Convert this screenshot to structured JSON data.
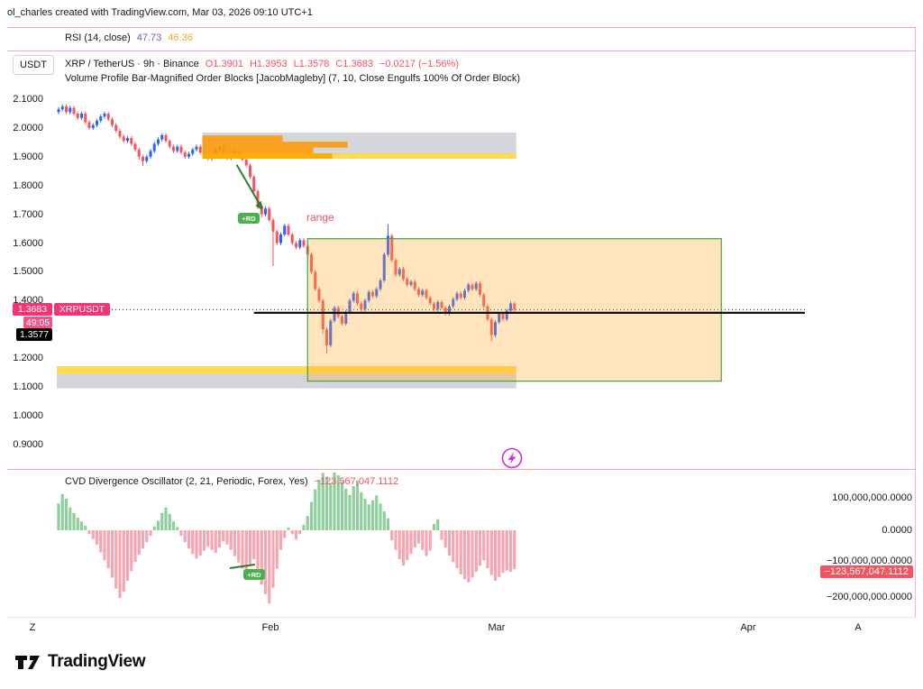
{
  "attribution": "ol_charles created with TradingView.com, Mar 03, 2026 09:10 UTC+1",
  "rsi_pane": {
    "label": "RSI (14, close)",
    "value_purple": "47.73",
    "value_orange": "46.36"
  },
  "symbol_row": {
    "title": "XRP / TetherUS · 9h · Binance",
    "ohlc": [
      "O1.3901",
      "H1.3953",
      "L1.3578",
      "C1.3683"
    ],
    "change": "−0.0217 (−1.56%)"
  },
  "indicator_row": {
    "title": "Volume Profile Bar-Magnified Order Blocks [JacobMagleby] (7, 10, Close Engulfs 100% Of Order Block)"
  },
  "currency_button": "USDT",
  "price_axis": {
    "ticks": [
      "2.1000",
      "2.0000",
      "1.9000",
      "1.8000",
      "1.7000",
      "1.6000",
      "1.5000",
      "1.4000",
      "1.2000",
      "1.1000",
      "1.0000",
      "0.9000"
    ]
  },
  "price_labels": {
    "current": "1.3683",
    "symbol_tag": "XRPUSDT",
    "countdown": "49:05",
    "hline": "1.3577"
  },
  "annotations": {
    "range_label": "range",
    "rd_badge": "+RD"
  },
  "time_axis": {
    "labels": [
      "Z",
      "Feb",
      "Mar",
      "Apr",
      "A"
    ]
  },
  "oscillator": {
    "label": "CVD Divergence Oscillator (2, 21, Periodic, Forex, Yes)",
    "value": "−123,567,047.1112",
    "axis": [
      "100,000,000.0000",
      "0.0000",
      "−100,000,000.0000",
      "−200,000,000.0000"
    ],
    "badge": "−123,567,047.1112"
  },
  "logo": {
    "text": "TradingView"
  },
  "colors": {
    "up": "#2962ff",
    "down": "#f7525f",
    "red_text": "#f7525f",
    "pink_label": "#f23674",
    "purple": "#7e57c2",
    "orange_value": "#f5a623",
    "osc_green": "#8fcf9b",
    "osc_red": "#f6a6b0",
    "separator": "#fa6e78",
    "green": "#2e7d32",
    "range_border": "#43a047"
  },
  "chart_data": {
    "type": "candlestick",
    "symbol": "XRP/USDT",
    "interval": "9h",
    "exchange": "Binance",
    "price_axis_range": [
      0.9,
      2.155
    ],
    "last": {
      "open": 1.3901,
      "high": 1.3953,
      "low": 1.3578,
      "close": 1.3683,
      "change": -0.0217,
      "change_pct": -1.56
    },
    "candles": [
      [
        2.055,
        2.072,
        2.048,
        2.065
      ],
      [
        2.065,
        2.082,
        2.058,
        2.075
      ],
      [
        2.075,
        2.082,
        2.048,
        2.055
      ],
      [
        2.055,
        2.077,
        2.048,
        2.07
      ],
      [
        2.07,
        2.077,
        2.043,
        2.05
      ],
      [
        2.05,
        2.057,
        2.028,
        2.035
      ],
      [
        2.035,
        2.057,
        2.028,
        2.05
      ],
      [
        2.05,
        2.057,
        2.013,
        2.02
      ],
      [
        2.02,
        2.027,
        1.993,
        2.0
      ],
      [
        2.0,
        2.017,
        1.993,
        2.01
      ],
      [
        2.01,
        2.032,
        2.003,
        2.025
      ],
      [
        2.025,
        2.047,
        2.018,
        2.04
      ],
      [
        2.04,
        2.057,
        2.033,
        2.05
      ],
      [
        2.05,
        2.057,
        2.023,
        2.03
      ],
      [
        2.03,
        2.037,
        2.003,
        2.01
      ],
      [
        2.01,
        2.017,
        1.983,
        1.99
      ],
      [
        1.99,
        1.997,
        1.963,
        1.97
      ],
      [
        1.97,
        1.977,
        1.948,
        1.955
      ],
      [
        1.955,
        1.972,
        1.948,
        1.965
      ],
      [
        1.965,
        1.972,
        1.938,
        1.945
      ],
      [
        1.945,
        1.952,
        1.918,
        1.925
      ],
      [
        1.925,
        1.932,
        1.89,
        1.9
      ],
      [
        1.9,
        1.907,
        1.868,
        1.885
      ],
      [
        1.885,
        1.907,
        1.878,
        1.9
      ],
      [
        1.9,
        1.927,
        1.893,
        1.92
      ],
      [
        1.92,
        1.952,
        1.913,
        1.945
      ],
      [
        1.945,
        1.967,
        1.938,
        1.96
      ],
      [
        1.96,
        1.982,
        1.953,
        1.975
      ],
      [
        1.975,
        1.982,
        1.948,
        1.955
      ],
      [
        1.955,
        1.962,
        1.928,
        1.935
      ],
      [
        1.935,
        1.942,
        1.913,
        1.92
      ],
      [
        1.92,
        1.942,
        1.913,
        1.935
      ],
      [
        1.935,
        1.942,
        1.908,
        1.915
      ],
      [
        1.915,
        1.922,
        1.893,
        1.9
      ],
      [
        1.9,
        1.917,
        1.893,
        1.91
      ],
      [
        1.91,
        1.932,
        1.903,
        1.925
      ],
      [
        1.925,
        1.942,
        1.918,
        1.935
      ],
      [
        1.935,
        1.942,
        1.908,
        1.915
      ],
      [
        1.915,
        1.922,
        1.893,
        1.9
      ],
      [
        1.9,
        1.907,
        1.886,
        1.893
      ],
      [
        1.893,
        1.912,
        1.886,
        1.905
      ],
      [
        1.905,
        1.932,
        1.898,
        1.925
      ],
      [
        1.925,
        1.942,
        1.918,
        1.935
      ],
      [
        1.935,
        1.942,
        1.908,
        1.915
      ],
      [
        1.915,
        1.922,
        1.888,
        1.895
      ],
      [
        1.895,
        1.912,
        1.888,
        1.905
      ],
      [
        1.905,
        1.927,
        1.898,
        1.92
      ],
      [
        1.92,
        1.927,
        1.893,
        1.9
      ],
      [
        1.9,
        1.907,
        1.883,
        1.89
      ],
      [
        1.89,
        1.897,
        1.863,
        1.87
      ],
      [
        1.87,
        1.877,
        1.823,
        1.83
      ],
      [
        1.83,
        1.837,
        1.773,
        1.78
      ],
      [
        1.78,
        1.787,
        1.718,
        1.73
      ],
      [
        1.73,
        1.737,
        1.688,
        1.7
      ],
      [
        1.7,
        1.727,
        1.693,
        1.72
      ],
      [
        1.72,
        1.727,
        1.673,
        1.68
      ],
      [
        1.68,
        1.687,
        1.52,
        1.64
      ],
      [
        1.64,
        1.647,
        1.593,
        1.6
      ],
      [
        1.6,
        1.637,
        1.593,
        1.63
      ],
      [
        1.63,
        1.667,
        1.623,
        1.66
      ],
      [
        1.66,
        1.667,
        1.623,
        1.63
      ],
      [
        1.63,
        1.637,
        1.593,
        1.6
      ],
      [
        1.6,
        1.607,
        1.578,
        1.585
      ],
      [
        1.585,
        1.617,
        1.578,
        1.61
      ],
      [
        1.61,
        1.617,
        1.583,
        1.59
      ],
      [
        1.59,
        1.597,
        1.553,
        1.56
      ],
      [
        1.56,
        1.567,
        1.493,
        1.5
      ],
      [
        1.5,
        1.507,
        1.433,
        1.44
      ],
      [
        1.44,
        1.447,
        1.393,
        1.4
      ],
      [
        1.4,
        1.407,
        1.285,
        1.3
      ],
      [
        1.3,
        1.307,
        1.215,
        1.245
      ],
      [
        1.245,
        1.337,
        1.238,
        1.33
      ],
      [
        1.33,
        1.382,
        1.323,
        1.375
      ],
      [
        1.375,
        1.382,
        1.338,
        1.345
      ],
      [
        1.345,
        1.352,
        1.313,
        1.32
      ],
      [
        1.32,
        1.367,
        1.313,
        1.36
      ],
      [
        1.36,
        1.407,
        1.353,
        1.4
      ],
      [
        1.4,
        1.432,
        1.393,
        1.425
      ],
      [
        1.425,
        1.432,
        1.383,
        1.39
      ],
      [
        1.39,
        1.397,
        1.363,
        1.37
      ],
      [
        1.37,
        1.407,
        1.363,
        1.4
      ],
      [
        1.4,
        1.437,
        1.393,
        1.43
      ],
      [
        1.43,
        1.437,
        1.408,
        1.415
      ],
      [
        1.415,
        1.447,
        1.408,
        1.44
      ],
      [
        1.44,
        1.477,
        1.433,
        1.47
      ],
      [
        1.47,
        1.567,
        1.463,
        1.56
      ],
      [
        1.56,
        1.665,
        1.553,
        1.625
      ],
      [
        1.625,
        1.632,
        1.533,
        1.54
      ],
      [
        1.54,
        1.547,
        1.483,
        1.49
      ],
      [
        1.49,
        1.517,
        1.483,
        1.51
      ],
      [
        1.51,
        1.517,
        1.468,
        1.475
      ],
      [
        1.475,
        1.482,
        1.448,
        1.455
      ],
      [
        1.455,
        1.472,
        1.448,
        1.465
      ],
      [
        1.465,
        1.472,
        1.433,
        1.44
      ],
      [
        1.44,
        1.447,
        1.413,
        1.42
      ],
      [
        1.42,
        1.442,
        1.413,
        1.435
      ],
      [
        1.435,
        1.442,
        1.403,
        1.41
      ],
      [
        1.41,
        1.417,
        1.383,
        1.39
      ],
      [
        1.39,
        1.397,
        1.363,
        1.37
      ],
      [
        1.37,
        1.402,
        1.363,
        1.395
      ],
      [
        1.395,
        1.402,
        1.368,
        1.375
      ],
      [
        1.375,
        1.382,
        1.348,
        1.355
      ],
      [
        1.355,
        1.387,
        1.348,
        1.38
      ],
      [
        1.38,
        1.412,
        1.373,
        1.405
      ],
      [
        1.405,
        1.432,
        1.398,
        1.425
      ],
      [
        1.425,
        1.432,
        1.403,
        1.41
      ],
      [
        1.41,
        1.442,
        1.403,
        1.435
      ],
      [
        1.435,
        1.462,
        1.428,
        1.455
      ],
      [
        1.455,
        1.462,
        1.433,
        1.44
      ],
      [
        1.44,
        1.467,
        1.433,
        1.46
      ],
      [
        1.46,
        1.467,
        1.413,
        1.42
      ],
      [
        1.42,
        1.427,
        1.373,
        1.38
      ],
      [
        1.38,
        1.387,
        1.328,
        1.335
      ],
      [
        1.335,
        1.342,
        1.258,
        1.28
      ],
      [
        1.28,
        1.332,
        1.273,
        1.325
      ],
      [
        1.325,
        1.362,
        1.318,
        1.355
      ],
      [
        1.355,
        1.362,
        1.328,
        1.335
      ],
      [
        1.335,
        1.372,
        1.328,
        1.365
      ],
      [
        1.365,
        1.397,
        1.358,
        1.39
      ],
      [
        1.3901,
        1.3953,
        1.3578,
        1.3683
      ]
    ],
    "sub_chart": {
      "type": "histogram",
      "name": "CVD Divergence Oscillator",
      "unit": "millions",
      "last_value": -123567047.1112,
      "values": [
        85,
        115,
        100,
        72,
        55,
        40,
        28,
        15,
        -12,
        -28,
        -45,
        -70,
        -95,
        -120,
        -150,
        -185,
        -215,
        -195,
        -160,
        -130,
        -100,
        -78,
        -58,
        -38,
        -18,
        12,
        30,
        55,
        72,
        52,
        28,
        10,
        -18,
        -38,
        -58,
        -75,
        -90,
        -80,
        -65,
        -52,
        -62,
        -72,
        -55,
        -35,
        -45,
        -62,
        -82,
        -102,
        -122,
        -142,
        -112,
        -92,
        -132,
        -172,
        -202,
        -232,
        -182,
        -122,
        -62,
        -25,
        8,
        -12,
        -30,
        -12,
        18,
        45,
        90,
        130,
        160,
        182,
        170,
        150,
        186,
        174,
        155,
        132,
        112,
        140,
        158,
        120,
        100,
        82,
        95,
        110,
        85,
        60,
        38,
        -32,
        -62,
        -92,
        -112,
        -95,
        -75,
        -55,
        -42,
        -62,
        -82,
        -65,
        20,
        35,
        -30,
        -55,
        -80,
        -100,
        -120,
        -140,
        -155,
        -165,
        -150,
        -132,
        -112,
        -95,
        -120,
        -142,
        -160,
        -148,
        -135,
        -128,
        -132,
        -123.567
      ]
    },
    "overlays": {
      "range_box": {
        "price_low": 1.12,
        "price_high": 1.615,
        "i1": 65,
        "i2": 173
      },
      "order_blocks": [
        {
          "color": "gray",
          "p1": 1.906,
          "p2": 1.984,
          "i1": 38,
          "i2": 119
        },
        {
          "color": "orange",
          "p1": 1.952,
          "p2": 1.974,
          "i1": 38,
          "i2": 58
        },
        {
          "color": "orange",
          "p1": 1.932,
          "p2": 1.952,
          "i1": 38,
          "i2": 75
        },
        {
          "color": "orange",
          "p1": 1.912,
          "p2": 1.932,
          "i1": 38,
          "i2": 66
        },
        {
          "color": "yellow",
          "p1": 1.893,
          "p2": 1.912,
          "i1": 38,
          "i2": 119
        },
        {
          "color": "gold",
          "p1": 1.893,
          "p2": 1.912,
          "i1": 38,
          "i2": 71
        },
        {
          "color": "yellow",
          "p1": 1.145,
          "p2": 1.172,
          "i1": 0,
          "i2": 119
        },
        {
          "color": "gray",
          "p1": 1.095,
          "p2": 1.145,
          "i1": 0,
          "i2": 119
        }
      ],
      "horizontal_line": {
        "price": 1.3577,
        "i1": 51,
        "i2": 195
      },
      "current_price_line": {
        "price": 1.3683
      },
      "arrow": {
        "i1": 46.5,
        "p1": 1.872,
        "i2": 53,
        "p2": 1.723
      }
    }
  }
}
